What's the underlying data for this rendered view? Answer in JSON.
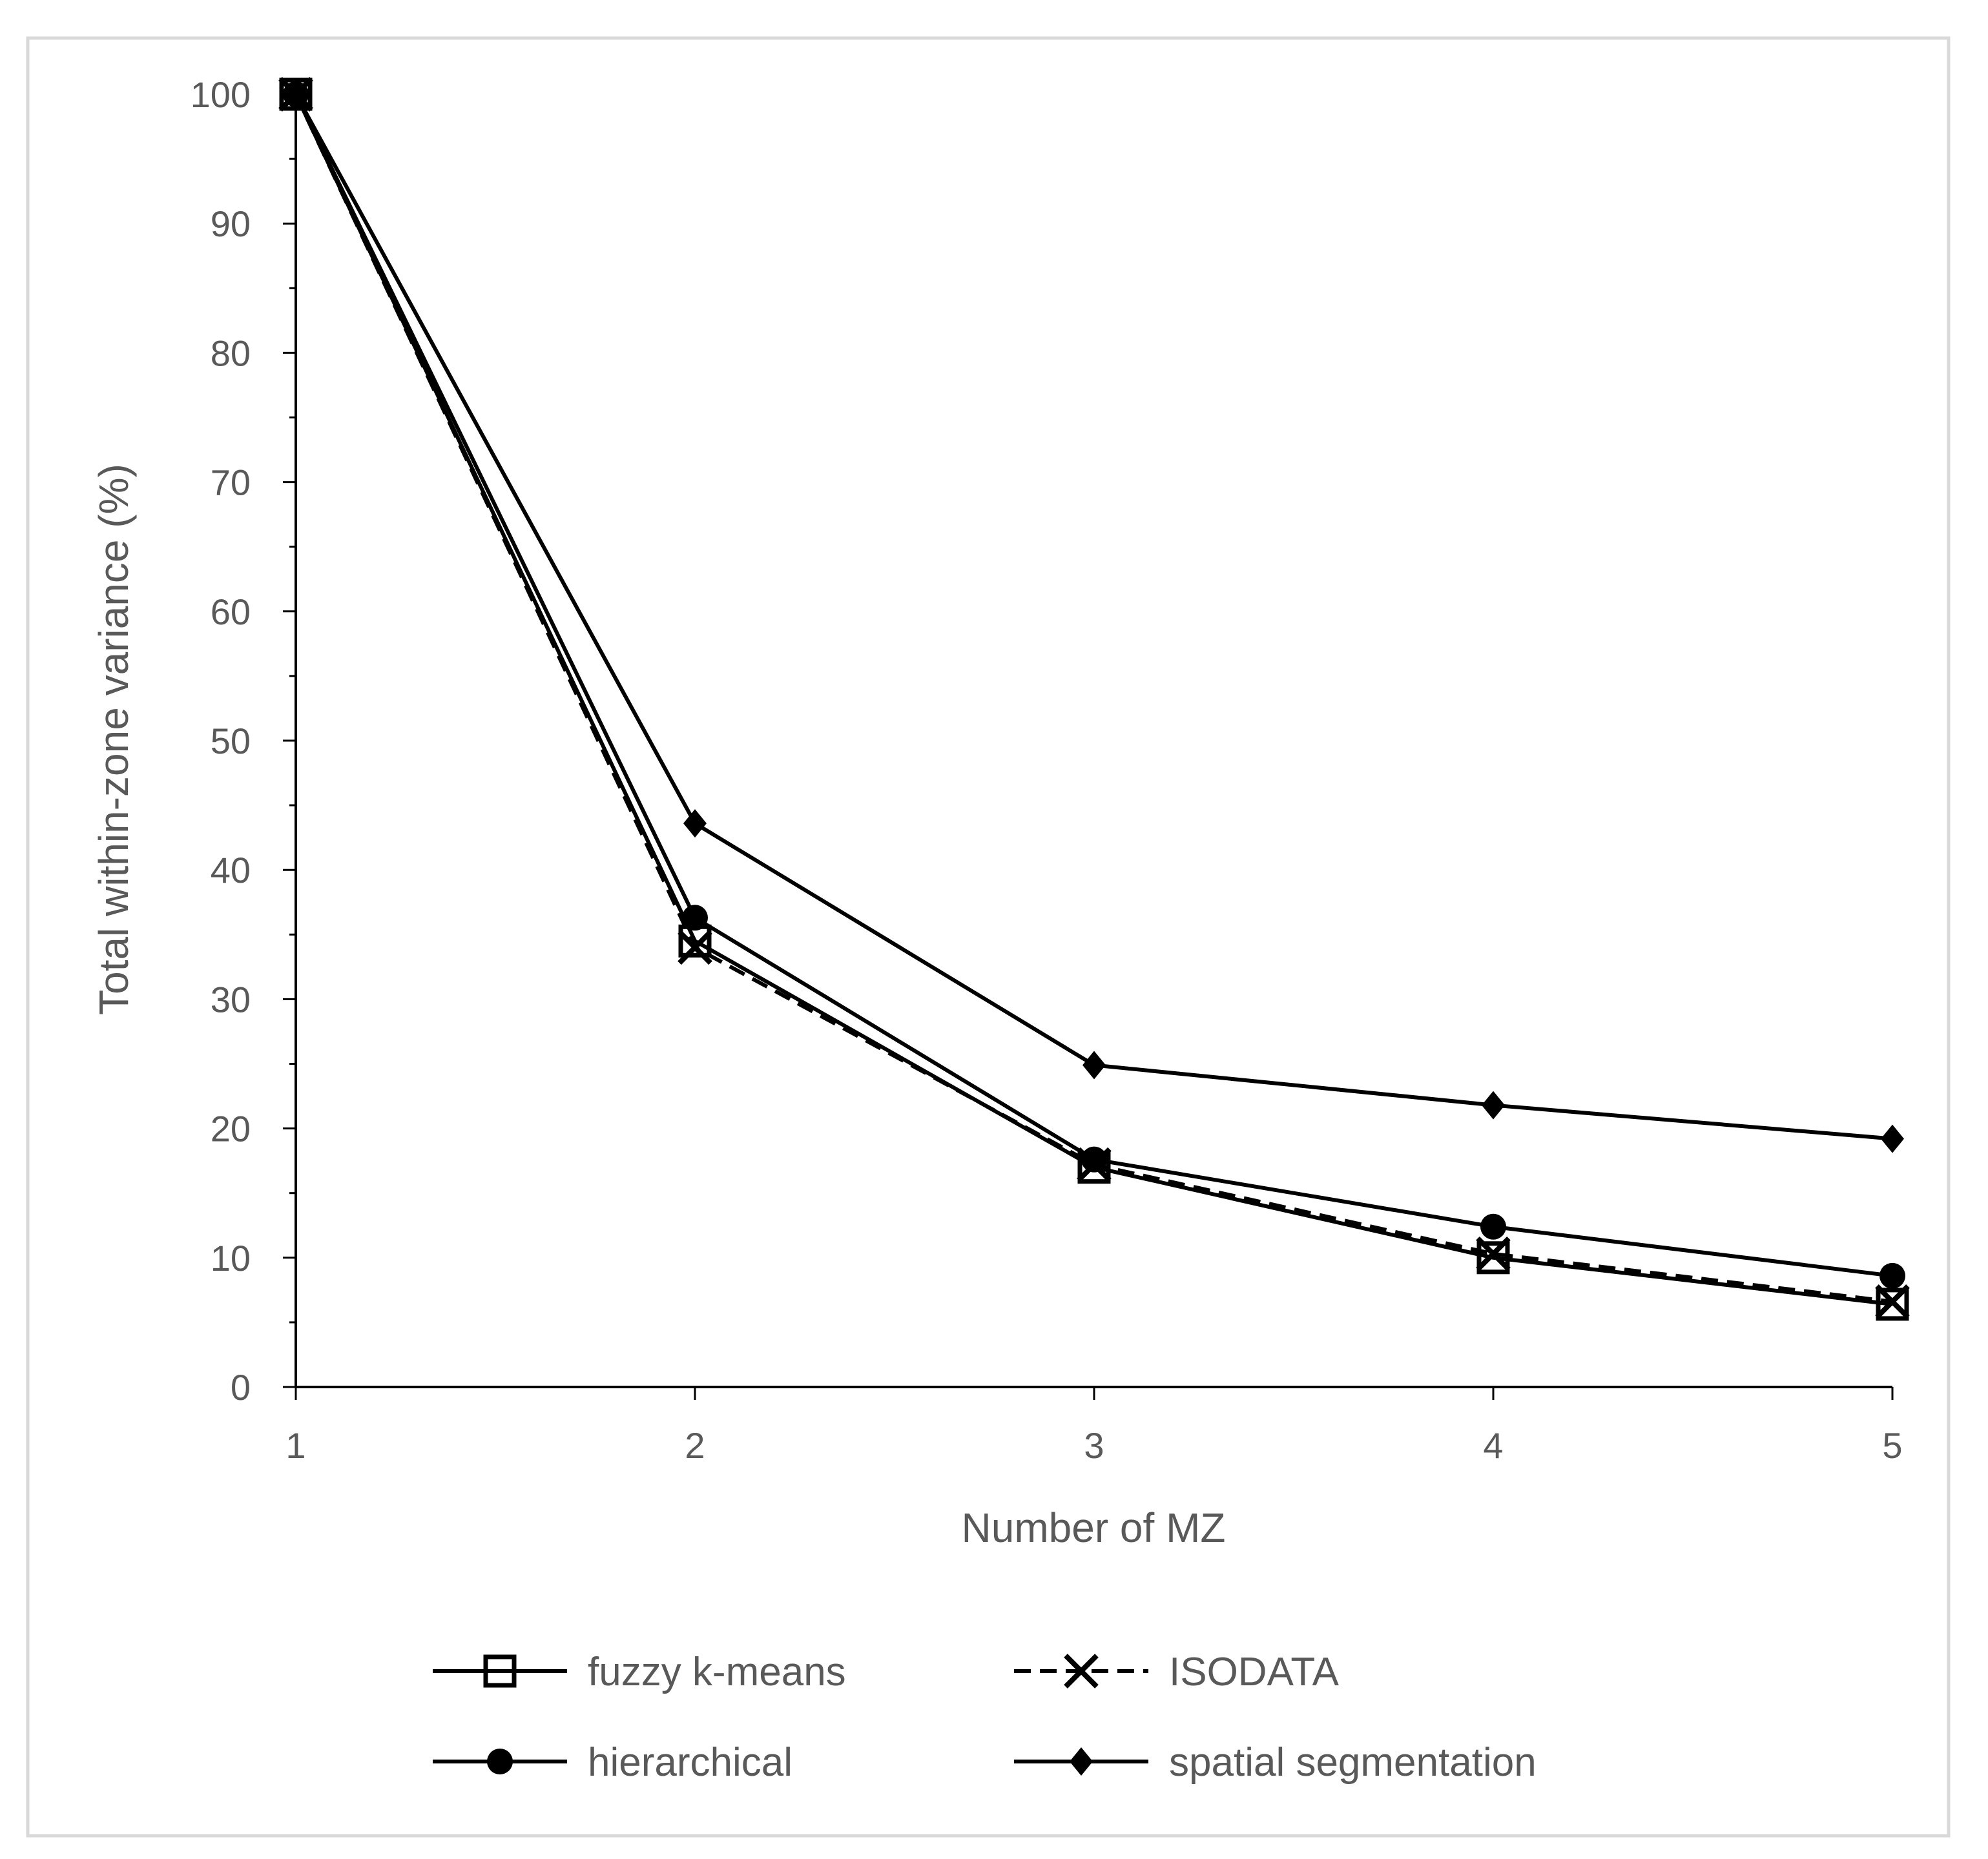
{
  "chart_data": {
    "type": "line",
    "title": "",
    "xlabel": "Number of MZ",
    "ylabel": "Total within-zone variance (%)",
    "x": [
      1,
      2,
      3,
      4,
      5
    ],
    "xlim": [
      1,
      5
    ],
    "ylim": [
      0,
      100
    ],
    "yticks": [
      0,
      10,
      20,
      30,
      40,
      50,
      60,
      70,
      80,
      90,
      100
    ],
    "xticks": [
      1,
      2,
      3,
      4,
      5
    ],
    "grid": false,
    "legend_position": "bottom",
    "series": [
      {
        "name": "fuzzy k-means",
        "values": [
          100,
          34.5,
          17.0,
          10.0,
          6.4
        ],
        "marker": "square-open",
        "dash": "solid",
        "color": "#000000"
      },
      {
        "name": "ISODATA",
        "values": [
          100,
          34.0,
          17.2,
          10.3,
          6.6
        ],
        "marker": "x",
        "dash": "dashed",
        "color": "#000000"
      },
      {
        "name": "hierarchical",
        "values": [
          100,
          36.3,
          17.6,
          12.4,
          8.6
        ],
        "marker": "circle",
        "dash": "solid",
        "color": "#000000"
      },
      {
        "name": "spatial segmentation",
        "values": [
          100,
          43.6,
          24.9,
          21.8,
          19.2
        ],
        "marker": "diamond",
        "dash": "solid",
        "color": "#000000"
      }
    ]
  },
  "colors": {
    "axis": "#000000",
    "text": "#595959",
    "border": "#d9d9d9"
  }
}
